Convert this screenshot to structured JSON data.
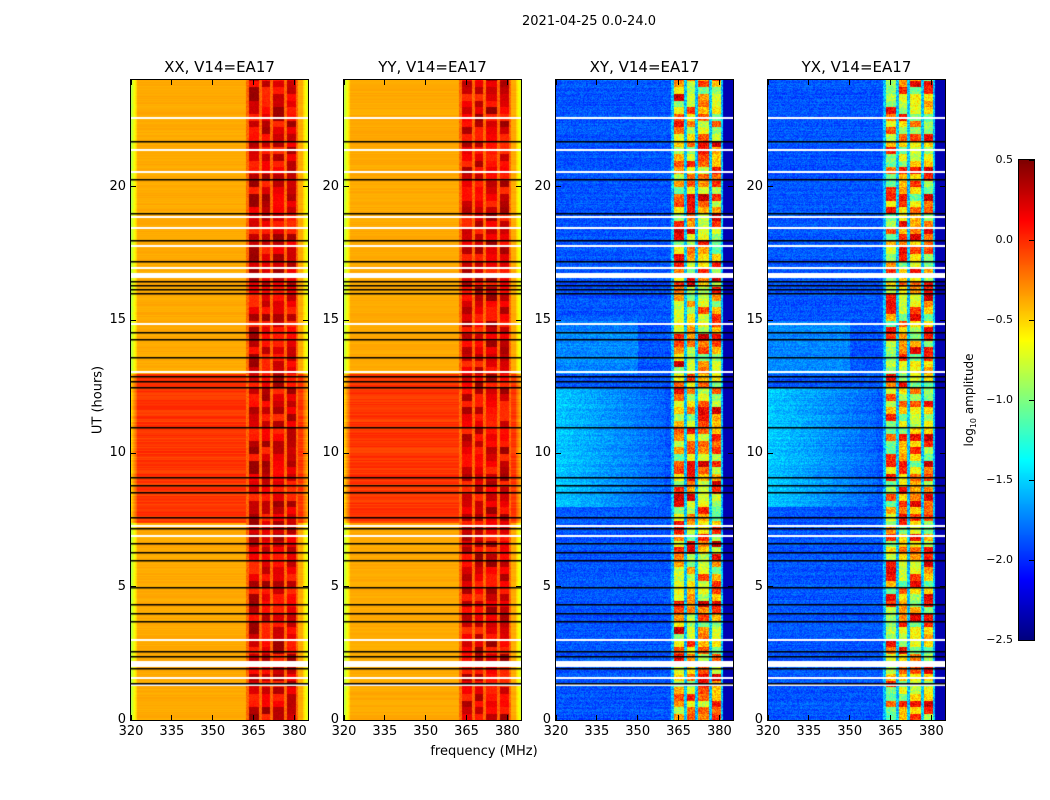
{
  "suptitle": "2021-04-25 0.0-24.0",
  "colors": {
    "flag_white": "#ffffff",
    "flag_black": "#000000",
    "colormap": "jet"
  },
  "chart_data": {
    "type": "heatmap",
    "xlabel": "frequency (MHz)",
    "ylabel": "UT (hours)",
    "xlim": [
      320,
      385
    ],
    "ylim": [
      0,
      24
    ],
    "xticks": [
      320,
      335,
      350,
      365,
      380
    ],
    "yticks": [
      0,
      5,
      10,
      15,
      20
    ],
    "panels": [
      {
        "title": "XX, V14=EA17",
        "kind": "parallel"
      },
      {
        "title": "YY, V14=EA17",
        "kind": "parallel"
      },
      {
        "title": "XY, V14=EA17",
        "kind": "cross"
      },
      {
        "title": "YX, V14=EA17",
        "kind": "cross"
      }
    ],
    "rfi_bands_mhz": [
      [
        363,
        367
      ],
      [
        368,
        371
      ],
      [
        372,
        376
      ],
      [
        377,
        380.5
      ]
    ],
    "flagged_white_hours": [
      22.6,
      21.4,
      20.6,
      18.9,
      18.5,
      17.8,
      17.0,
      16.75,
      16.7,
      16.65,
      14.9,
      13.1,
      7.3,
      6.95,
      3.05,
      2.2,
      2.15,
      2.1,
      2.05,
      1.6,
      1.35
    ],
    "flagged_black_hours": [
      21.7,
      20.3,
      19.0,
      18.0,
      17.2,
      16.45,
      16.3,
      16.15,
      16.0,
      14.55,
      14.3,
      13.6,
      12.9,
      12.7,
      12.5,
      11.0,
      9.1,
      8.8,
      8.55,
      7.6,
      7.2,
      6.65,
      6.3,
      6.0,
      5.0,
      4.35,
      4.0,
      3.7,
      2.6,
      2.4,
      1.95,
      1.4
    ],
    "colorbar": {
      "label_prefix": "log",
      "label_sub": "10",
      "label_suffix": " amplitude",
      "range": [
        -2.5,
        0.5
      ],
      "ticks": [
        -2.5,
        -2.0,
        -1.5,
        -1.0,
        -0.5,
        0.0,
        0.5
      ],
      "tick_labels": [
        "−2.5",
        "−2.0",
        "−1.5",
        "−1.0",
        "−0.5",
        "0.0",
        "0.5"
      ]
    }
  }
}
